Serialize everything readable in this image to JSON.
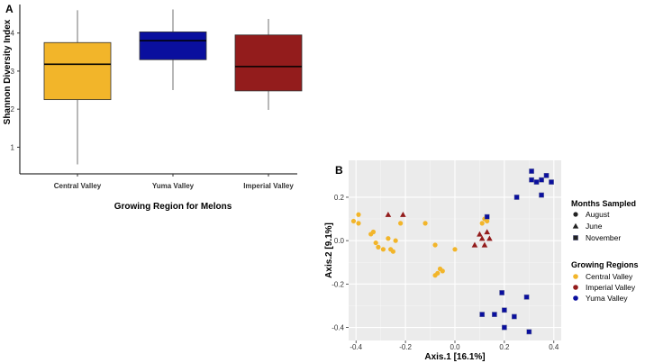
{
  "chart_data": [
    {
      "panel": "A",
      "type": "box",
      "xlabel": "Growing Region for Melons",
      "ylabel": "Shannon Diversity Index",
      "ylim": [
        0.3,
        4.75
      ],
      "yticks": [
        1,
        2,
        3,
        4
      ],
      "categories": [
        "Central Valley",
        "Yuma Valley",
        "Imperial Valley"
      ],
      "boxes": [
        {
          "name": "Central Valley",
          "min": 0.55,
          "q1": 2.25,
          "median": 3.18,
          "q3": 3.75,
          "max": 4.6,
          "color": "#F2B52A"
        },
        {
          "name": "Yuma Valley",
          "min": 2.5,
          "q1": 3.3,
          "median": 3.8,
          "q3": 4.03,
          "max": 4.62,
          "color": "#0A0F9E"
        },
        {
          "name": "Imperial Valley",
          "min": 1.98,
          "q1": 2.48,
          "median": 3.12,
          "q3": 3.95,
          "max": 4.37,
          "color": "#931C1C"
        }
      ]
    },
    {
      "panel": "B",
      "type": "scatter",
      "xlabel": "Axis.1   [16.1%]",
      "ylabel": "Axis.2   [9.1%]",
      "xlim": [
        -0.43,
        0.43
      ],
      "ylim": [
        -0.46,
        0.37
      ],
      "xticks": [
        -0.4,
        -0.2,
        0.0,
        0.2,
        0.4
      ],
      "yticks": [
        -0.4,
        -0.2,
        0.0,
        0.2
      ],
      "grid": true,
      "legend": {
        "shape_title": "Months Sampled",
        "shapes": [
          {
            "label": "August",
            "shape": "circle"
          },
          {
            "label": "June",
            "shape": "triangle"
          },
          {
            "label": "November",
            "shape": "square"
          }
        ],
        "color_title": "Growing Regions",
        "colors": [
          {
            "label": "Central Valley",
            "color": "#F2B52A"
          },
          {
            "label": "Imperial Valley",
            "color": "#931C1C"
          },
          {
            "label": "Yuma Valley",
            "color": "#0A0F9E"
          }
        ]
      },
      "series": [
        {
          "name": "Central Valley",
          "color": "#F2B52A",
          "shape": "circle",
          "points": [
            [
              -0.41,
              0.09
            ],
            [
              -0.39,
              0.12
            ],
            [
              -0.39,
              0.08
            ],
            [
              -0.34,
              0.03
            ],
            [
              -0.33,
              0.04
            ],
            [
              -0.32,
              -0.01
            ],
            [
              -0.31,
              -0.03
            ],
            [
              -0.29,
              -0.04
            ],
            [
              -0.27,
              0.01
            ],
            [
              -0.26,
              -0.04
            ],
            [
              -0.25,
              -0.05
            ],
            [
              -0.24,
              0.0
            ],
            [
              -0.22,
              0.08
            ],
            [
              -0.12,
              0.08
            ],
            [
              -0.08,
              -0.02
            ],
            [
              -0.06,
              -0.13
            ],
            [
              -0.05,
              -0.14
            ],
            [
              -0.07,
              -0.15
            ],
            [
              -0.08,
              -0.16
            ],
            [
              0.0,
              -0.04
            ],
            [
              0.12,
              0.1
            ],
            [
              0.11,
              0.08
            ],
            [
              0.13,
              0.09
            ]
          ]
        },
        {
          "name": "Imperial Valley",
          "color": "#931C1C",
          "shape": "triangle",
          "points": [
            [
              -0.27,
              0.12
            ],
            [
              -0.21,
              0.12
            ],
            [
              0.08,
              -0.02
            ],
            [
              0.1,
              0.03
            ],
            [
              0.11,
              0.01
            ],
            [
              0.12,
              -0.02
            ],
            [
              0.13,
              0.04
            ],
            [
              0.14,
              0.01
            ]
          ]
        },
        {
          "name": "Yuma Valley",
          "color": "#0A0F9E",
          "shape": "square",
          "points": [
            [
              0.13,
              0.11
            ],
            [
              0.25,
              0.2
            ],
            [
              0.31,
              0.32
            ],
            [
              0.31,
              0.28
            ],
            [
              0.33,
              0.27
            ],
            [
              0.35,
              0.28
            ],
            [
              0.35,
              0.21
            ],
            [
              0.37,
              0.3
            ],
            [
              0.39,
              0.27
            ],
            [
              0.11,
              -0.34
            ],
            [
              0.16,
              -0.34
            ],
            [
              0.19,
              -0.24
            ],
            [
              0.2,
              -0.32
            ],
            [
              0.2,
              -0.4
            ],
            [
              0.24,
              -0.35
            ],
            [
              0.29,
              -0.26
            ],
            [
              0.3,
              -0.42
            ]
          ]
        }
      ]
    }
  ]
}
